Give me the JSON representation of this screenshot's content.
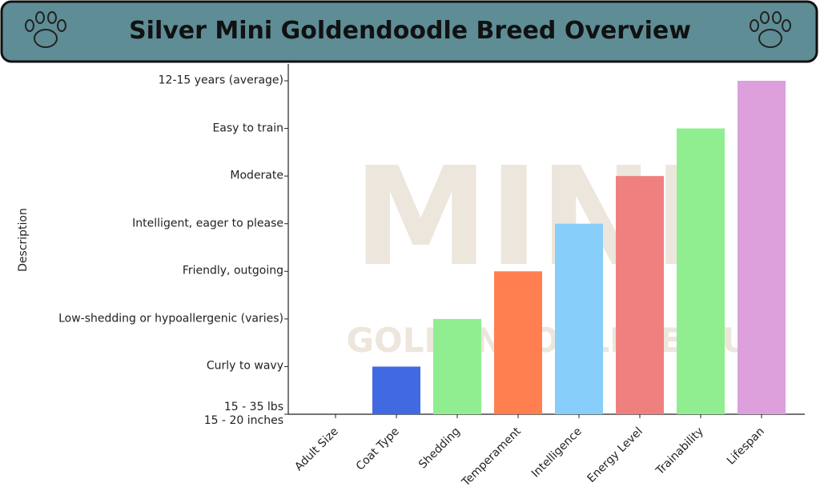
{
  "chart_data": {
    "type": "bar",
    "title": "Silver Mini Goldendoodle Breed Overview",
    "y_label": "Description",
    "watermark": "MINI",
    "watermark_subtitle": "GOLDENDOOLDLE HUB",
    "categories": [
      "Adult Size",
      "Coat Type",
      "Shedding",
      "Temperament",
      "Intelligence",
      "Energy Level",
      "Trainability",
      "Lifespan"
    ],
    "values": [
      0,
      1,
      2,
      3,
      4,
      5,
      6,
      7
    ],
    "colors": [
      "#4169e1",
      "#4169e1",
      "#90ee90",
      "#ff7f50",
      "#87cefa",
      "#f08080",
      "#90ee90",
      "#dda0dd"
    ],
    "ylim": [
      0,
      7
    ],
    "yticks": [
      {
        "value": 0,
        "label": "15 - 35 lbs\n15 - 20 inches"
      },
      {
        "value": 1,
        "label": "Curly to wavy"
      },
      {
        "value": 2,
        "label": "Low-shedding or hypoallergenic (varies)"
      },
      {
        "value": 3,
        "label": "Friendly, outgoing"
      },
      {
        "value": 4,
        "label": "Intelligent, eager to please"
      },
      {
        "value": 5,
        "label": "Moderate"
      },
      {
        "value": 6,
        "label": "Easy to train"
      },
      {
        "value": 7,
        "label": "12-15 years (average)"
      }
    ]
  }
}
